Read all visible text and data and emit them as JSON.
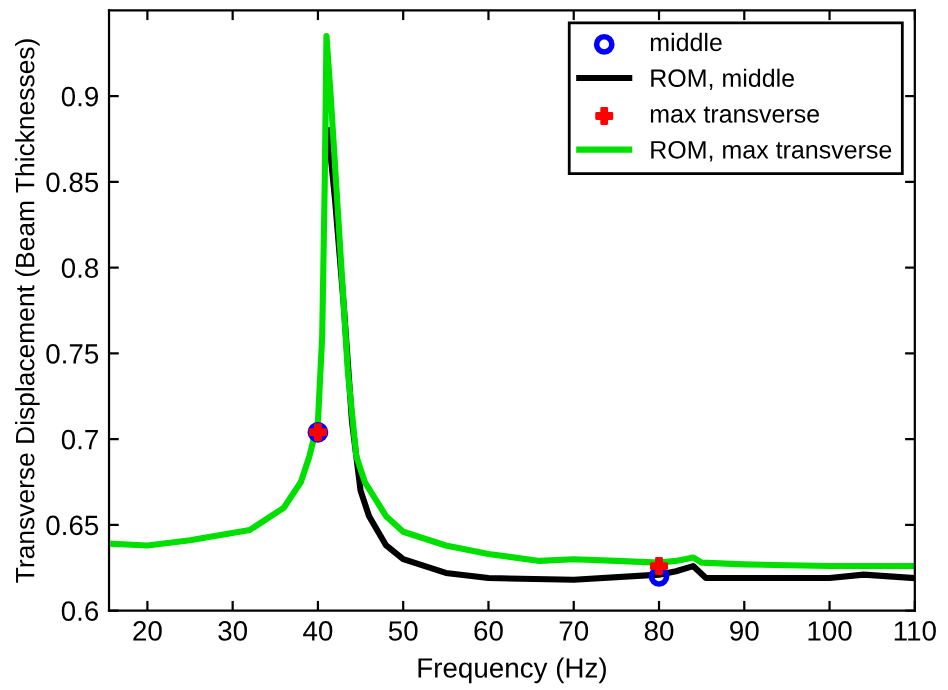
{
  "chart_data": {
    "type": "line",
    "xlabel": "Frequency (Hz)",
    "ylabel": "Transverse Displacement (Beam Thicknesses)",
    "xlim": [
      15.5,
      110
    ],
    "ylim": [
      0.6,
      0.95
    ],
    "xticks": [
      20,
      30,
      40,
      50,
      60,
      70,
      80,
      90,
      100,
      110
    ],
    "yticks": [
      0.6,
      0.65,
      0.7,
      0.75,
      0.8,
      0.85,
      0.9
    ],
    "grid": false,
    "legend": "top right",
    "series": [
      {
        "name": "middle",
        "type": "scatter",
        "marker": "circle",
        "color": "#0000ff",
        "x": [
          40,
          80
        ],
        "values": [
          0.704,
          0.62
        ]
      },
      {
        "name": "ROM, middle",
        "color": "#000000",
        "x": [
          41.2,
          42,
          43,
          44,
          45,
          46,
          48,
          50,
          55,
          60,
          70,
          80,
          82,
          84,
          85.5,
          90,
          100,
          104,
          110
        ],
        "values": [
          0.88,
          0.84,
          0.78,
          0.71,
          0.67,
          0.655,
          0.638,
          0.63,
          0.622,
          0.619,
          0.618,
          0.621,
          0.623,
          0.626,
          0.619,
          0.619,
          0.619,
          0.621,
          0.619
        ]
      },
      {
        "name": "max transverse",
        "type": "scatter",
        "marker": "cross",
        "color": "#ff0000",
        "x": [
          40,
          80
        ],
        "values": [
          0.704,
          0.626
        ]
      },
      {
        "name": "ROM, max transverse",
        "color": "#00e000",
        "x": [
          16,
          20,
          25,
          32,
          36,
          38,
          39,
          40,
          40.5,
          40.8,
          41,
          41.5,
          42.5,
          43.5,
          44.5,
          45.5,
          48,
          50,
          55,
          60,
          66,
          70,
          75,
          80,
          82,
          84,
          85,
          90,
          100,
          110
        ],
        "values": [
          0.639,
          0.638,
          0.641,
          0.647,
          0.66,
          0.675,
          0.69,
          0.71,
          0.76,
          0.85,
          0.935,
          0.9,
          0.82,
          0.74,
          0.69,
          0.675,
          0.655,
          0.646,
          0.638,
          0.633,
          0.629,
          0.63,
          0.629,
          0.628,
          0.629,
          0.631,
          0.628,
          0.627,
          0.626,
          0.626
        ]
      }
    ]
  }
}
